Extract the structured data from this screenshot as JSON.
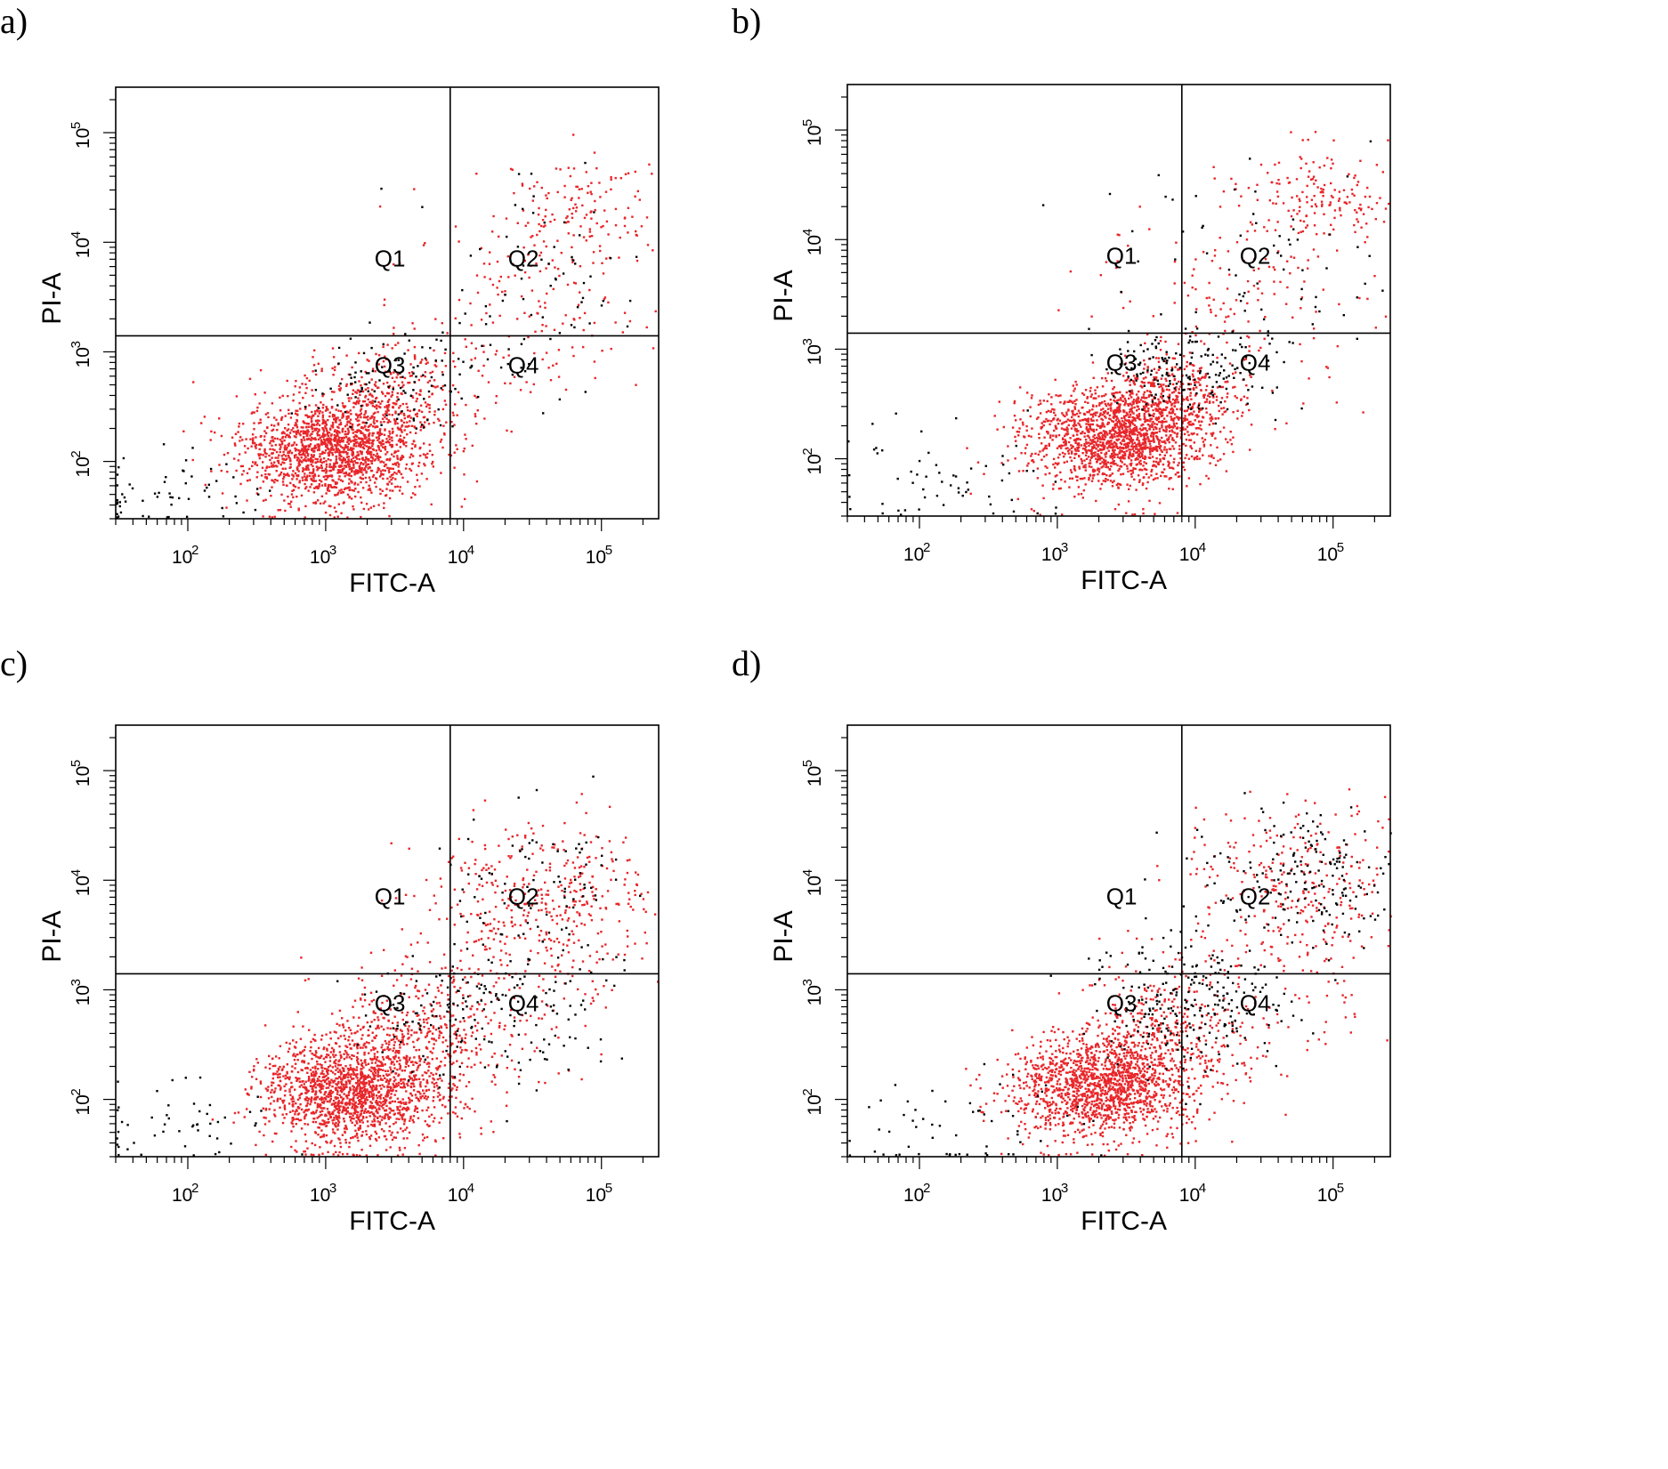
{
  "colors": {
    "red_events": "#e8262a",
    "black_events": "#000000",
    "axis": "#000000"
  },
  "panels": [
    {
      "id": "a",
      "label": "a)"
    },
    {
      "id": "b",
      "label": "b)"
    },
    {
      "id": "c",
      "label": "c)"
    },
    {
      "id": "d",
      "label": "d)"
    }
  ],
  "chart_data": [
    {
      "type": "scatter",
      "panel": "a)",
      "xlabel": "FITC-A",
      "ylabel": "PI-A",
      "xscale": "log",
      "yscale": "log",
      "xlim": [
        30,
        260000
      ],
      "ylim": [
        30,
        260000
      ],
      "x_ticks": [
        "10^2",
        "10^3",
        "10^4",
        "10^5"
      ],
      "y_ticks": [
        "10^2",
        "10^3",
        "10^4",
        "10^5"
      ],
      "gate": {
        "x": 8000,
        "y": 1400
      },
      "quadrants": [
        "Q1",
        "Q2",
        "Q3",
        "Q4"
      ],
      "series": [
        {
          "color": "red",
          "clusters": [
            {
              "center": [
                1100,
                120
              ],
              "spread": [
                0.32,
                0.24
              ],
              "count": 1500
            },
            {
              "center": [
                2600,
                300
              ],
              "spread": [
                0.32,
                0.28
              ],
              "count": 450
            },
            {
              "center": [
                60000,
                18000
              ],
              "spread": [
                0.32,
                0.26
              ],
              "count": 150
            },
            {
              "center": [
                25000,
                2500
              ],
              "spread": [
                0.45,
                0.45
              ],
              "count": 150
            }
          ]
        },
        {
          "color": "black",
          "clusters": [
            {
              "center": [
                3500,
                500
              ],
              "spread": [
                0.35,
                0.25
              ],
              "count": 110
            },
            {
              "center": [
                30000,
                4000
              ],
              "spread": [
                0.45,
                0.45
              ],
              "count": 70
            },
            {
              "center": [
                80,
                55
              ],
              "spread": [
                0.35,
                0.2
              ],
              "count": 60
            }
          ]
        }
      ]
    },
    {
      "type": "scatter",
      "panel": "b)",
      "xlabel": "FITC-A",
      "ylabel": "PI-A",
      "xscale": "log",
      "yscale": "log",
      "xlim": [
        30,
        260000
      ],
      "ylim": [
        30,
        260000
      ],
      "x_ticks": [
        "10^2",
        "10^3",
        "10^4",
        "10^5"
      ],
      "y_ticks": [
        "10^2",
        "10^3",
        "10^4",
        "10^5"
      ],
      "gate": {
        "x": 8000,
        "y": 1400
      },
      "quadrants": [
        "Q1",
        "Q2",
        "Q3",
        "Q4"
      ],
      "series": [
        {
          "color": "red",
          "clusters": [
            {
              "center": [
                2500,
                150
              ],
              "spread": [
                0.32,
                0.22
              ],
              "count": 1500
            },
            {
              "center": [
                6500,
                350
              ],
              "spread": [
                0.25,
                0.2
              ],
              "count": 450
            },
            {
              "center": [
                80000,
                22000
              ],
              "spread": [
                0.3,
                0.22
              ],
              "count": 170
            },
            {
              "center": [
                20000,
                3000
              ],
              "spread": [
                0.5,
                0.45
              ],
              "count": 150
            }
          ]
        },
        {
          "color": "black",
          "clusters": [
            {
              "center": [
                8000,
                600
              ],
              "spread": [
                0.3,
                0.2
              ],
              "count": 160
            },
            {
              "center": [
                30000,
                5000
              ],
              "spread": [
                0.5,
                0.45
              ],
              "count": 80
            },
            {
              "center": [
                150,
                60
              ],
              "spread": [
                0.4,
                0.25
              ],
              "count": 60
            }
          ]
        }
      ]
    },
    {
      "type": "scatter",
      "panel": "c)",
      "xlabel": "FITC-A",
      "ylabel": "PI-A",
      "xscale": "log",
      "yscale": "log",
      "xlim": [
        30,
        260000
      ],
      "ylim": [
        30,
        260000
      ],
      "x_ticks": [
        "10^2",
        "10^3",
        "10^4",
        "10^5"
      ],
      "y_ticks": [
        "10^2",
        "10^3",
        "10^4",
        "10^5"
      ],
      "gate": {
        "x": 8000,
        "y": 1400
      },
      "quadrants": [
        "Q1",
        "Q2",
        "Q3",
        "Q4"
      ],
      "series": [
        {
          "color": "red",
          "clusters": [
            {
              "center": [
                1500,
                110
              ],
              "spread": [
                0.32,
                0.24
              ],
              "count": 1500
            },
            {
              "center": [
                4000,
                300
              ],
              "spread": [
                0.35,
                0.3
              ],
              "count": 450
            },
            {
              "center": [
                40000,
                6000
              ],
              "spread": [
                0.4,
                0.38
              ],
              "count": 400
            },
            {
              "center": [
                20000,
                800
              ],
              "spread": [
                0.45,
                0.4
              ],
              "count": 150
            }
          ]
        },
        {
          "color": "black",
          "clusters": [
            {
              "center": [
                15000,
                600
              ],
              "spread": [
                0.4,
                0.35
              ],
              "count": 180
            },
            {
              "center": [
                40000,
                8000
              ],
              "spread": [
                0.4,
                0.4
              ],
              "count": 90
            },
            {
              "center": [
                80,
                55
              ],
              "spread": [
                0.35,
                0.2
              ],
              "count": 50
            }
          ]
        }
      ]
    },
    {
      "type": "scatter",
      "panel": "d)",
      "xlabel": "FITC-A",
      "ylabel": "PI-A",
      "xscale": "log",
      "yscale": "log",
      "xlim": [
        30,
        260000
      ],
      "ylim": [
        30,
        260000
      ],
      "x_ticks": [
        "10^2",
        "10^3",
        "10^4",
        "10^5"
      ],
      "y_ticks": [
        "10^2",
        "10^3",
        "10^4",
        "10^5"
      ],
      "gate": {
        "x": 8000,
        "y": 1400
      },
      "quadrants": [
        "Q1",
        "Q2",
        "Q3",
        "Q4"
      ],
      "series": [
        {
          "color": "red",
          "clusters": [
            {
              "center": [
                2000,
                130
              ],
              "spread": [
                0.32,
                0.24
              ],
              "count": 1500
            },
            {
              "center": [
                6000,
                350
              ],
              "spread": [
                0.3,
                0.3
              ],
              "count": 350
            },
            {
              "center": [
                60000,
                10000
              ],
              "spread": [
                0.4,
                0.35
              ],
              "count": 250
            },
            {
              "center": [
                30000,
                1500
              ],
              "spread": [
                0.5,
                0.45
              ],
              "count": 150
            }
          ]
        },
        {
          "color": "black",
          "clusters": [
            {
              "center": [
                10000,
                800
              ],
              "spread": [
                0.35,
                0.35
              ],
              "count": 250
            },
            {
              "center": [
                60000,
                10000
              ],
              "spread": [
                0.4,
                0.35
              ],
              "count": 200
            },
            {
              "center": [
                200,
                60
              ],
              "spread": [
                0.5,
                0.3
              ],
              "count": 60
            }
          ]
        }
      ]
    }
  ]
}
